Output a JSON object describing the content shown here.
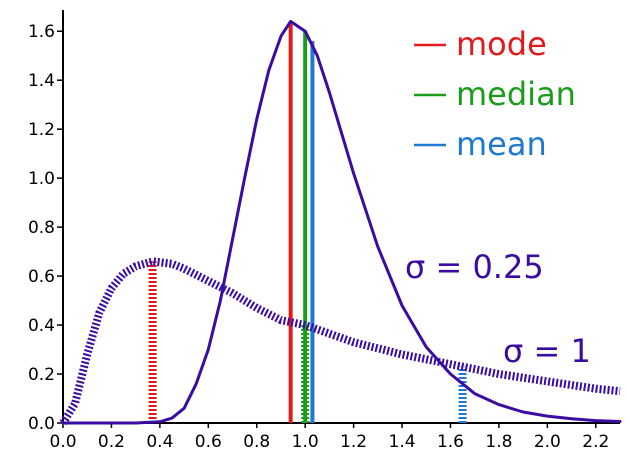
{
  "chart_data": {
    "type": "line",
    "title": "",
    "xlabel": "",
    "ylabel": "",
    "xlim": [
      0.0,
      2.3
    ],
    "ylim": [
      0.0,
      1.65
    ],
    "xticks": [
      "0.0",
      "0.2",
      "0.4",
      "0.6",
      "0.8",
      "1.0",
      "1.2",
      "1.4",
      "1.6",
      "1.8",
      "2.0",
      "2.2"
    ],
    "yticks": [
      "0.0",
      "0.2",
      "0.4",
      "0.6",
      "0.8",
      "1.0",
      "1.2",
      "1.4",
      "1.6"
    ],
    "legend_position": "top-right",
    "legend": [
      {
        "label": "mode",
        "color": "#e31a1c"
      },
      {
        "label": "median",
        "color": "#1a9e1a"
      },
      {
        "label": "mean",
        "color": "#1f78d1"
      }
    ],
    "curve_color": "#3a0ca3",
    "series": [
      {
        "label": "σ = 0.25",
        "style": "solid",
        "x": [
          0.0,
          0.3,
          0.4,
          0.45,
          0.5,
          0.55,
          0.6,
          0.65,
          0.7,
          0.75,
          0.8,
          0.85,
          0.9,
          0.94,
          1.0,
          1.05,
          1.1,
          1.2,
          1.3,
          1.4,
          1.5,
          1.6,
          1.7,
          1.8,
          1.9,
          2.0,
          2.1,
          2.2,
          2.3
        ],
        "y": [
          0.0,
          0.0,
          0.005,
          0.02,
          0.06,
          0.16,
          0.3,
          0.5,
          0.75,
          1.0,
          1.24,
          1.44,
          1.58,
          1.64,
          1.6,
          1.5,
          1.35,
          1.02,
          0.72,
          0.48,
          0.31,
          0.2,
          0.12,
          0.075,
          0.045,
          0.028,
          0.017,
          0.01,
          0.006
        ]
      },
      {
        "label": "σ = 1",
        "style": "hatched",
        "x": [
          0.0,
          0.05,
          0.1,
          0.15,
          0.2,
          0.25,
          0.3,
          0.37,
          0.45,
          0.5,
          0.6,
          0.7,
          0.8,
          0.9,
          1.0,
          1.2,
          1.4,
          1.6,
          1.8,
          2.0,
          2.2,
          2.3
        ],
        "y": [
          0.0,
          0.08,
          0.28,
          0.45,
          0.55,
          0.61,
          0.64,
          0.66,
          0.65,
          0.63,
          0.58,
          0.53,
          0.47,
          0.42,
          0.4,
          0.33,
          0.28,
          0.24,
          0.2,
          0.17,
          0.14,
          0.13
        ]
      }
    ],
    "markers": [
      {
        "stat": "mode",
        "curve": "σ = 0.25",
        "x": 0.94,
        "height": 1.64,
        "color": "#e31a1c",
        "style": "solid"
      },
      {
        "stat": "median",
        "curve": "σ = 0.25",
        "x": 1.0,
        "height": 1.6,
        "color": "#1a9e1a",
        "style": "solid"
      },
      {
        "stat": "mean",
        "curve": "σ = 0.25",
        "x": 1.03,
        "height": 1.56,
        "color": "#1f78d1",
        "style": "solid"
      },
      {
        "stat": "mode",
        "curve": "σ = 1",
        "x": 0.37,
        "height": 0.66,
        "color": "#e31a1c",
        "style": "hatched"
      },
      {
        "stat": "median",
        "curve": "σ = 1",
        "x": 1.0,
        "height": 0.4,
        "color": "#1a9e1a",
        "style": "hatched"
      },
      {
        "stat": "mean",
        "curve": "σ = 1",
        "x": 1.65,
        "height": 0.23,
        "color": "#1f78d1",
        "style": "hatched"
      }
    ],
    "curve_labels": [
      {
        "text": "σ = 0.25",
        "curve": "σ = 0.25"
      },
      {
        "text": "σ = 1",
        "curve": "σ = 1"
      }
    ]
  }
}
